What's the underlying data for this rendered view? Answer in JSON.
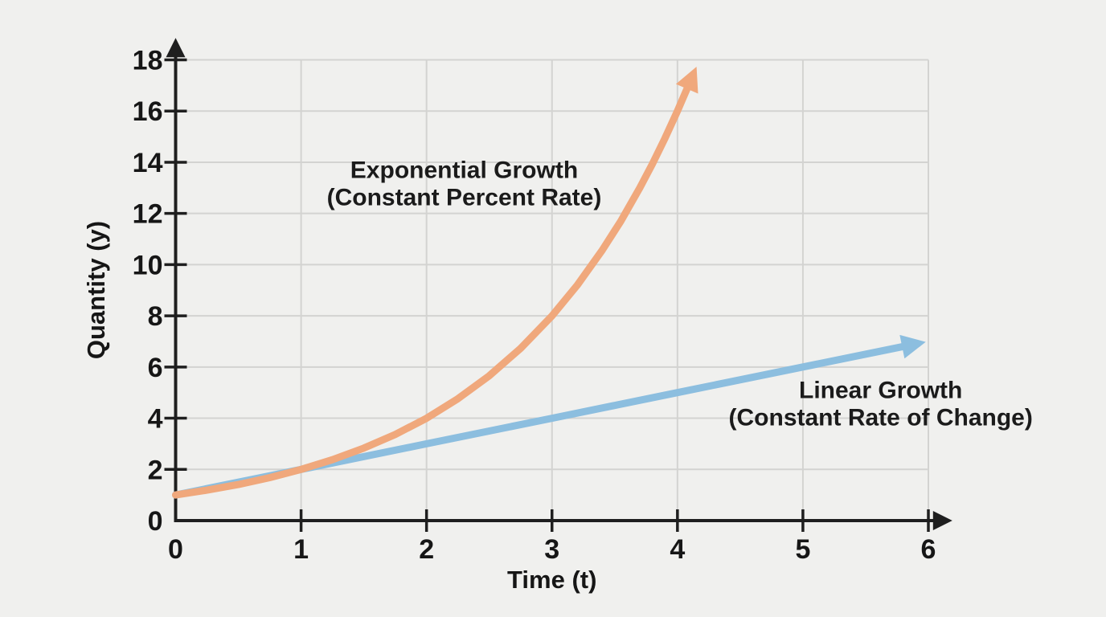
{
  "page": {
    "background": "#efefee"
  },
  "chart_data": {
    "type": "line",
    "title": "",
    "xlabel": "Time (t)",
    "ylabel": "Quantity (y)",
    "xlim": [
      0,
      6
    ],
    "ylim": [
      0,
      18
    ],
    "x_ticks": [
      0,
      1,
      2,
      3,
      4,
      5,
      6
    ],
    "y_ticks": [
      0,
      2,
      4,
      6,
      8,
      10,
      12,
      14,
      16,
      18
    ],
    "grid": true,
    "legend_position": "none",
    "colors": {
      "axis": "#1f1f1f",
      "grid": "#d3d3d1",
      "text": "#161616",
      "exponential": "#f0a87c",
      "linear": "#8cbedf"
    },
    "series": [
      {
        "name": "Linear Growth (Constant Rate of Change)",
        "formula": "y = t + 1",
        "color": "#8cbedf",
        "arrowhead": true,
        "points": [
          [
            0,
            1
          ],
          [
            1,
            2
          ],
          [
            2,
            3
          ],
          [
            3,
            4
          ],
          [
            4,
            5
          ],
          [
            5,
            6
          ],
          [
            5.8,
            6.8
          ]
        ]
      },
      {
        "name": "Exponential Growth (Constant Percent Rate)",
        "formula": "y = 2^t",
        "color": "#f0a87c",
        "arrowhead": true,
        "points": [
          [
            0,
            1
          ],
          [
            0.25,
            1.19
          ],
          [
            0.5,
            1.41
          ],
          [
            0.75,
            1.68
          ],
          [
            1,
            2
          ],
          [
            1.25,
            2.38
          ],
          [
            1.5,
            2.83
          ],
          [
            1.75,
            3.36
          ],
          [
            2,
            4
          ],
          [
            2.25,
            4.76
          ],
          [
            2.5,
            5.66
          ],
          [
            2.75,
            6.73
          ],
          [
            3,
            8
          ],
          [
            3.2,
            9.19
          ],
          [
            3.4,
            10.56
          ],
          [
            3.55,
            11.71
          ],
          [
            3.7,
            13.0
          ],
          [
            3.8,
            13.93
          ],
          [
            3.9,
            14.93
          ],
          [
            4,
            16
          ],
          [
            4.08,
            16.91
          ]
        ]
      }
    ],
    "annotations": [
      {
        "id": "exponential",
        "lines": [
          "Exponential Growth",
          "(Constant Percent Rate)"
        ],
        "x": 2.3,
        "y": 13.2
      },
      {
        "id": "linear",
        "lines": [
          "Linear Growth",
          "(Constant Rate of Change)"
        ],
        "x": 5.62,
        "y": 4.6
      }
    ]
  }
}
